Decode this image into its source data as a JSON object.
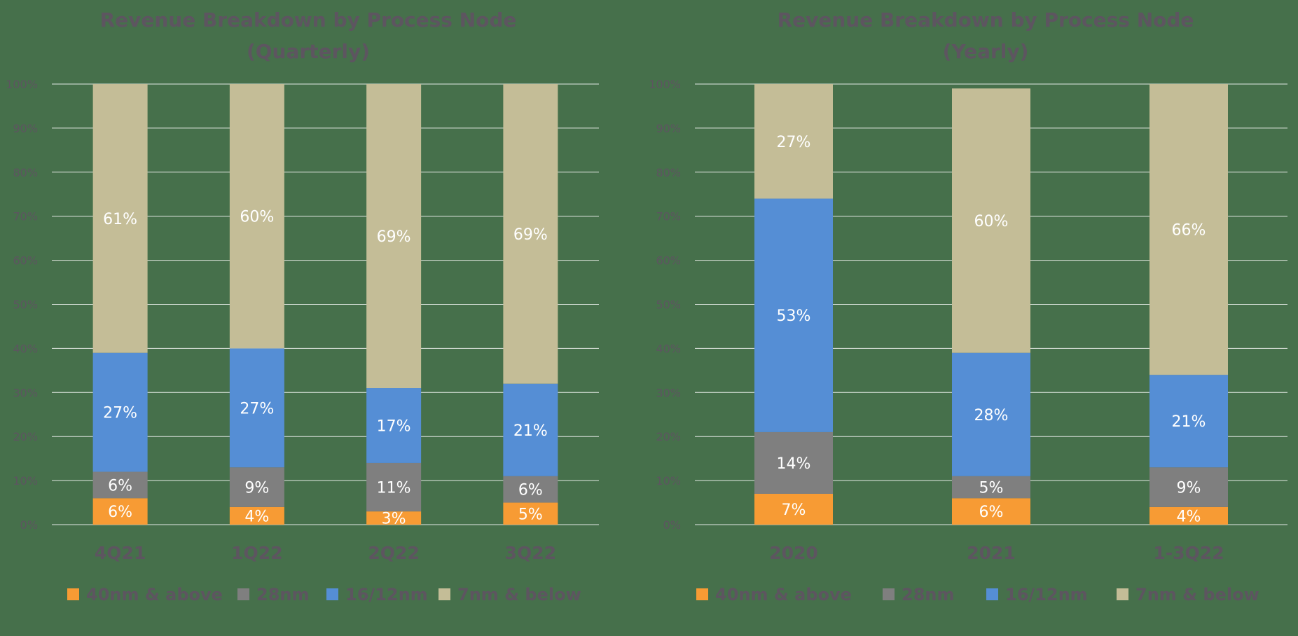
{
  "chart_data": [
    {
      "type": "bar",
      "stacked": true,
      "title": "Revenue Breakdown by Process Node",
      "subtitle": "(Quarterly)",
      "categories": [
        "4Q21",
        "1Q22",
        "2Q22",
        "3Q22"
      ],
      "series": [
        {
          "name": "40nm & above",
          "values": [
            6,
            4,
            3,
            5
          ],
          "color": "#f79b34"
        },
        {
          "name": "28nm",
          "values": [
            6,
            9,
            11,
            6
          ],
          "color": "#7f7f7f"
        },
        {
          "name": "16/12nm",
          "values": [
            27,
            27,
            17,
            21
          ],
          "color": "#558ed5"
        },
        {
          "name": "7nm & below",
          "values": [
            61,
            60,
            69,
            69
          ],
          "color": "#c4bd97"
        }
      ],
      "ylim": [
        0,
        100
      ],
      "yticks": [
        "0%",
        "10%",
        "20%",
        "30%",
        "40%",
        "50%",
        "60%",
        "70%",
        "80%",
        "90%",
        "100%"
      ],
      "grid": true,
      "legend": "bottom"
    },
    {
      "type": "bar",
      "stacked": true,
      "title": "Revenue Breakdown by Process Node",
      "subtitle": "(Yearly)",
      "categories": [
        "2020",
        "2021",
        "1-3Q22"
      ],
      "series": [
        {
          "name": "40nm & above",
          "values": [
            7,
            6,
            4
          ],
          "color": "#f79b34"
        },
        {
          "name": "28nm",
          "values": [
            14,
            5,
            9
          ],
          "color": "#7f7f7f"
        },
        {
          "name": "16/12nm",
          "values": [
            53,
            28,
            21
          ],
          "color": "#558ed5"
        },
        {
          "name": "7nm & below",
          "values": [
            27,
            60,
            66
          ],
          "color": "#c4bd97"
        }
      ],
      "ylim": [
        0,
        100
      ],
      "yticks": [
        "0%",
        "10%",
        "20%",
        "30%",
        "40%",
        "50%",
        "60%",
        "70%",
        "80%",
        "90%",
        "100%"
      ],
      "grid": true,
      "legend": "bottom"
    }
  ]
}
